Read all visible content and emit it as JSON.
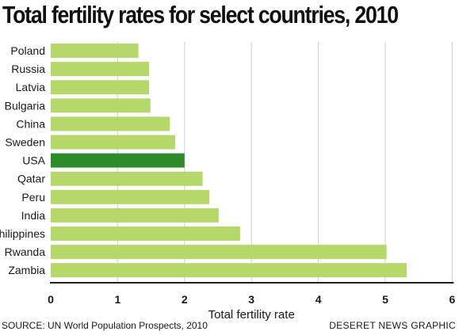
{
  "chart_data": {
    "type": "bar",
    "orientation": "horizontal",
    "title": "Total fertility rates for select countries, 2010",
    "xlabel": "Total fertility rate",
    "ylabel": "",
    "categories": [
      "Poland",
      "Russia",
      "Latvia",
      "Bulgaria",
      "China",
      "Sweden",
      "USA",
      "Qatar",
      "Peru",
      "India",
      "Philippines",
      "Rwanda",
      "Zambia"
    ],
    "values": [
      1.31,
      1.47,
      1.47,
      1.49,
      1.78,
      1.86,
      2.0,
      2.27,
      2.37,
      2.51,
      2.83,
      5.02,
      5.32
    ],
    "highlight": "USA",
    "xlim": [
      0,
      6
    ],
    "xticks": [
      "0",
      "1",
      "2",
      "3",
      "4",
      "5",
      "6"
    ],
    "grid": true,
    "colors": {
      "bar": "#b6d86a",
      "highlight": "#2e8b2a",
      "grid": "#cfcfcf",
      "axis": "#222222"
    }
  },
  "footer": {
    "source": "SOURCE: UN World Population Prospects, 2010",
    "credit": "DESERET NEWS GRAPHIC"
  }
}
